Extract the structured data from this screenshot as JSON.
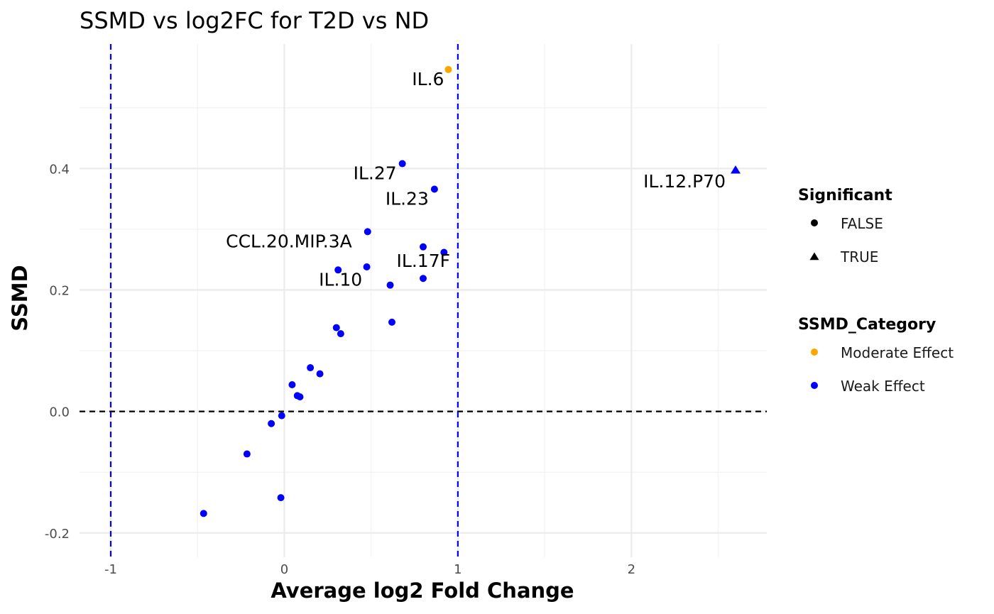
{
  "chart_data": {
    "type": "scatter",
    "title": "SSMD vs log2FC for T2D vs ND",
    "xlabel": "Average log2 Fold Change",
    "ylabel": "SSMD",
    "xlim": [
      -1.18,
      2.78
    ],
    "ylim": [
      -0.24,
      0.605
    ],
    "x_ticks": [
      -1,
      0,
      1,
      2
    ],
    "x_tick_labels": [
      "-1",
      "0",
      "1",
      "2"
    ],
    "y_ticks": [
      -0.2,
      0.0,
      0.2,
      0.4
    ],
    "y_tick_labels": [
      "-0.2",
      "0.0",
      "0.2",
      "0.4"
    ],
    "grid": true,
    "reference_lines": [
      {
        "axis": "x",
        "value": -1,
        "color": "#0000ff",
        "style": "dashed"
      },
      {
        "axis": "x",
        "value": 1,
        "color": "#0000ff",
        "style": "dashed"
      },
      {
        "axis": "y",
        "value": 0,
        "color": "#000000",
        "style": "dashed"
      }
    ],
    "colors": {
      "Moderate Effect": "#FFA500",
      "Weak Effect": "#0000FF"
    },
    "points": [
      {
        "x": 0.945,
        "y": 0.563,
        "category": "Moderate Effect",
        "significant": false,
        "label": "IL.6"
      },
      {
        "x": 2.6,
        "y": 0.397,
        "category": "Weak Effect",
        "significant": true,
        "label": "IL.12.P70"
      },
      {
        "x": 0.68,
        "y": 0.408,
        "category": "Weak Effect",
        "significant": false,
        "label": "IL.27"
      },
      {
        "x": 0.865,
        "y": 0.366,
        "category": "Weak Effect",
        "significant": false,
        "label": "IL.23"
      },
      {
        "x": 0.48,
        "y": 0.296,
        "category": "Weak Effect",
        "significant": false,
        "label": "CCL.20.MIP.3A"
      },
      {
        "x": 0.8,
        "y": 0.271,
        "category": "Weak Effect",
        "significant": false
      },
      {
        "x": 0.92,
        "y": 0.262,
        "category": "Weak Effect",
        "significant": false
      },
      {
        "x": 0.475,
        "y": 0.238,
        "category": "Weak Effect",
        "significant": false,
        "label": "IL.17F"
      },
      {
        "x": 0.31,
        "y": 0.233,
        "category": "Weak Effect",
        "significant": false,
        "label": "IL.10"
      },
      {
        "x": 0.8,
        "y": 0.219,
        "category": "Weak Effect",
        "significant": false
      },
      {
        "x": 0.61,
        "y": 0.208,
        "category": "Weak Effect",
        "significant": false
      },
      {
        "x": 0.62,
        "y": 0.147,
        "category": "Weak Effect",
        "significant": false
      },
      {
        "x": 0.3,
        "y": 0.138,
        "category": "Weak Effect",
        "significant": false
      },
      {
        "x": 0.325,
        "y": 0.128,
        "category": "Weak Effect",
        "significant": false
      },
      {
        "x": 0.15,
        "y": 0.072,
        "category": "Weak Effect",
        "significant": false
      },
      {
        "x": 0.205,
        "y": 0.062,
        "category": "Weak Effect",
        "significant": false
      },
      {
        "x": 0.045,
        "y": 0.044,
        "category": "Weak Effect",
        "significant": false
      },
      {
        "x": 0.075,
        "y": 0.026,
        "category": "Weak Effect",
        "significant": false
      },
      {
        "x": 0.09,
        "y": 0.024,
        "category": "Weak Effect",
        "significant": false
      },
      {
        "x": -0.015,
        "y": -0.007,
        "category": "Weak Effect",
        "significant": false
      },
      {
        "x": -0.075,
        "y": -0.02,
        "category": "Weak Effect",
        "significant": false
      },
      {
        "x": -0.215,
        "y": -0.07,
        "category": "Weak Effect",
        "significant": false
      },
      {
        "x": -0.02,
        "y": -0.142,
        "category": "Weak Effect",
        "significant": false
      },
      {
        "x": -0.465,
        "y": -0.168,
        "category": "Weak Effect",
        "significant": false
      }
    ],
    "legend": {
      "placement": "right",
      "groups": [
        {
          "title": "Significant",
          "entries": [
            {
              "label": "FALSE",
              "shape": "circle",
              "color": "#000000"
            },
            {
              "label": "TRUE",
              "shape": "triangle",
              "color": "#000000"
            }
          ]
        },
        {
          "title": "SSMD_Category",
          "entries": [
            {
              "label": "Moderate Effect",
              "shape": "circle",
              "color": "#FFA500"
            },
            {
              "label": "Weak Effect",
              "shape": "circle",
              "color": "#0000FF"
            }
          ]
        }
      ]
    }
  }
}
